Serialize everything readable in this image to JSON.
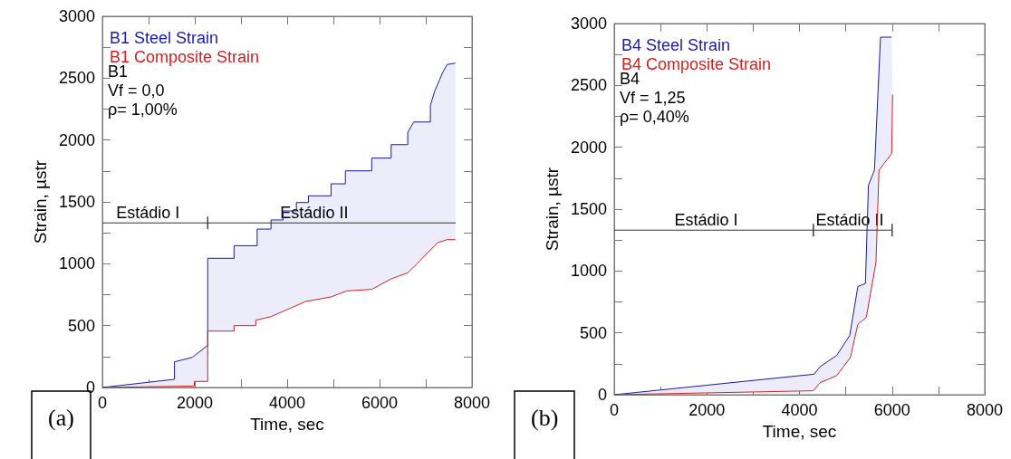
{
  "chart_data": [
    {
      "type": "line",
      "title": "(a)",
      "xlabel": "Time, sec",
      "ylabel": "Strain, µstr",
      "legend": "top left",
      "marker": "none",
      "xlim": [
        0,
        8000
      ],
      "xticks": [
        0,
        {
          "value": 1000,
          "label": null
        },
        2000,
        {
          "value": 3000,
          "label": null
        },
        4000,
        {
          "value": 5000,
          "label": null
        },
        6000,
        {
          "value": 7000,
          "label": null
        },
        8000
      ],
      "ylim": [
        0,
        3000
      ],
      "yticks": [
        0,
        {
          "value": 250,
          "label": null
        },
        500,
        {
          "value": 750,
          "label": null
        },
        1000,
        {
          "value": 1250,
          "label": null
        },
        1500,
        {
          "value": 1750,
          "label": null
        },
        2000,
        {
          "value": 2250,
          "label": null
        },
        2500,
        {
          "value": 2750,
          "label": null
        },
        3000
      ],
      "annotations": [
        "B1",
        "Vf = 0,0",
        "ρ= 1,00%",
        {
          "text": "Estádio I",
          "x": 300,
          "y": 1330
        },
        {
          "text": "Estádio II",
          "x": 3850,
          "y": 1330
        }
      ],
      "series": [
        {
          "name": "B1 Steel Strain",
          "color": "#1a1aa6",
          "x": [
            0,
            1560,
            1560,
            1950,
            2280,
            2280,
            2850,
            2850,
            3350,
            3350,
            3650,
            3650,
            3910,
            3910,
            4200,
            4200,
            4460,
            4460,
            4950,
            4950,
            5260,
            5260,
            5830,
            5830,
            6250,
            6250,
            6610,
            6610,
            6740,
            7100,
            7100,
            7200,
            7360,
            7460,
            7640
          ],
          "values": [
            0,
            66,
            207,
            244,
            341,
            1044,
            1044,
            1146,
            1146,
            1280,
            1280,
            1354,
            1354,
            1427,
            1427,
            1495,
            1495,
            1549,
            1549,
            1646,
            1646,
            1751,
            1751,
            1854,
            1854,
            1963,
            1963,
            2061,
            2146,
            2146,
            2280,
            2402,
            2541,
            2610,
            2622
          ]
        },
        {
          "name": "B1 Composite Strain",
          "color": "#d42020",
          "x": [
            0,
            1990,
            1990,
            2280,
            2280,
            2850,
            2850,
            3320,
            3320,
            3650,
            4070,
            4400,
            4950,
            5280,
            5830,
            6250,
            6610,
            6810,
            7040,
            7260,
            7460,
            7640
          ],
          "values": [
            0,
            12,
            49,
            49,
            456,
            456,
            500,
            500,
            544,
            573,
            641,
            695,
            732,
            780,
            793,
            878,
            927,
            1000,
            1090,
            1171,
            1195,
            1195
          ]
        },
        {
          "type": "line",
          "color": "#333333",
          "x": [
            0,
            2280,
            2280,
            2280,
            2280,
            7650
          ],
          "values": [
            1330,
            1330,
            1380,
            1280,
            1330,
            1330
          ]
        }
      ]
    },
    {
      "type": "line",
      "title": "(b)",
      "xlabel": "Time, sec",
      "ylabel": "Strain, µstr",
      "legend": "top left",
      "marker": "none",
      "xlim": [
        0,
        8000
      ],
      "xticks": [
        0,
        {
          "value": 1000,
          "label": null
        },
        2000,
        {
          "value": 3000,
          "label": null
        },
        4000,
        {
          "value": 5000,
          "label": null
        },
        6000,
        {
          "value": 7000,
          "label": null
        },
        8000
      ],
      "ylim": [
        0,
        3000
      ],
      "yticks": [
        0,
        {
          "value": 250,
          "label": null
        },
        500,
        {
          "value": 750,
          "label": null
        },
        1000,
        {
          "value": 1250,
          "label": null
        },
        1500,
        {
          "value": 1750,
          "label": null
        },
        2000,
        {
          "value": 2250,
          "label": null
        },
        2500,
        {
          "value": 2750,
          "label": null
        },
        3000
      ],
      "annotations": [
        "B4",
        "Vf = 1,25",
        "ρ= 0,40%",
        {
          "text": "Estádio I",
          "x": 1300,
          "y": 1330
        },
        {
          "text": "Estádio II",
          "x": 4350,
          "y": 1330
        }
      ],
      "series": [
        {
          "name": "B4 Steel Strain",
          "color": "#1a1aa6",
          "x": [
            0,
            4316,
            4446,
            4804,
            5085,
            5261,
            5424,
            5489,
            5619,
            5750,
            5991
          ],
          "values": [
            0,
            166,
            227,
            318,
            479,
            874,
            899,
            1693,
            1815,
            2890,
            2890
          ]
        },
        {
          "name": "B4 Composite Strain",
          "color": "#d42020",
          "x": [
            0,
            4300,
            4446,
            4804,
            5098,
            5261,
            5443,
            5652,
            5717,
            5991,
            6010
          ],
          "values": [
            0,
            32,
            98,
            154,
            300,
            569,
            625,
            1070,
            1815,
            1949,
            2425
          ]
        },
        {
          "type": "line",
          "color": "#333333",
          "x": [
            0,
            4300,
            4300,
            4300,
            4300,
            6000,
            6000,
            6000,
            6000
          ],
          "values": [
            1330,
            1330,
            1380,
            1280,
            1330,
            1330,
            1380,
            1280,
            1330
          ]
        }
      ]
    }
  ]
}
